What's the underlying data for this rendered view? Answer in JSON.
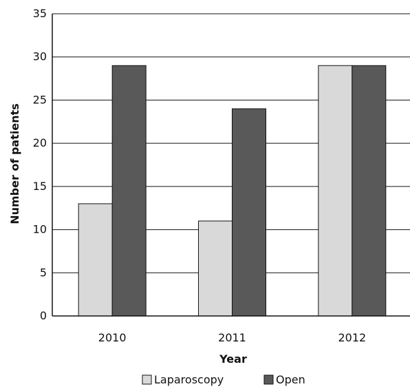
{
  "chart_data": {
    "type": "bar",
    "categories": [
      "2010",
      "2011",
      "2012"
    ],
    "series": [
      {
        "name": "Laparoscopy",
        "values": [
          13,
          11,
          29
        ],
        "color": "#d9d9d9"
      },
      {
        "name": "Open",
        "values": [
          29,
          24,
          29
        ],
        "color": "#595959"
      }
    ],
    "xlabel": "Year",
    "ylabel": "Number of patients",
    "ylim": [
      0,
      35
    ],
    "yticks": [
      "0",
      "5",
      "10",
      "15",
      "20",
      "25",
      "30",
      "35"
    ],
    "grid": true,
    "legend_position": "bottom"
  }
}
